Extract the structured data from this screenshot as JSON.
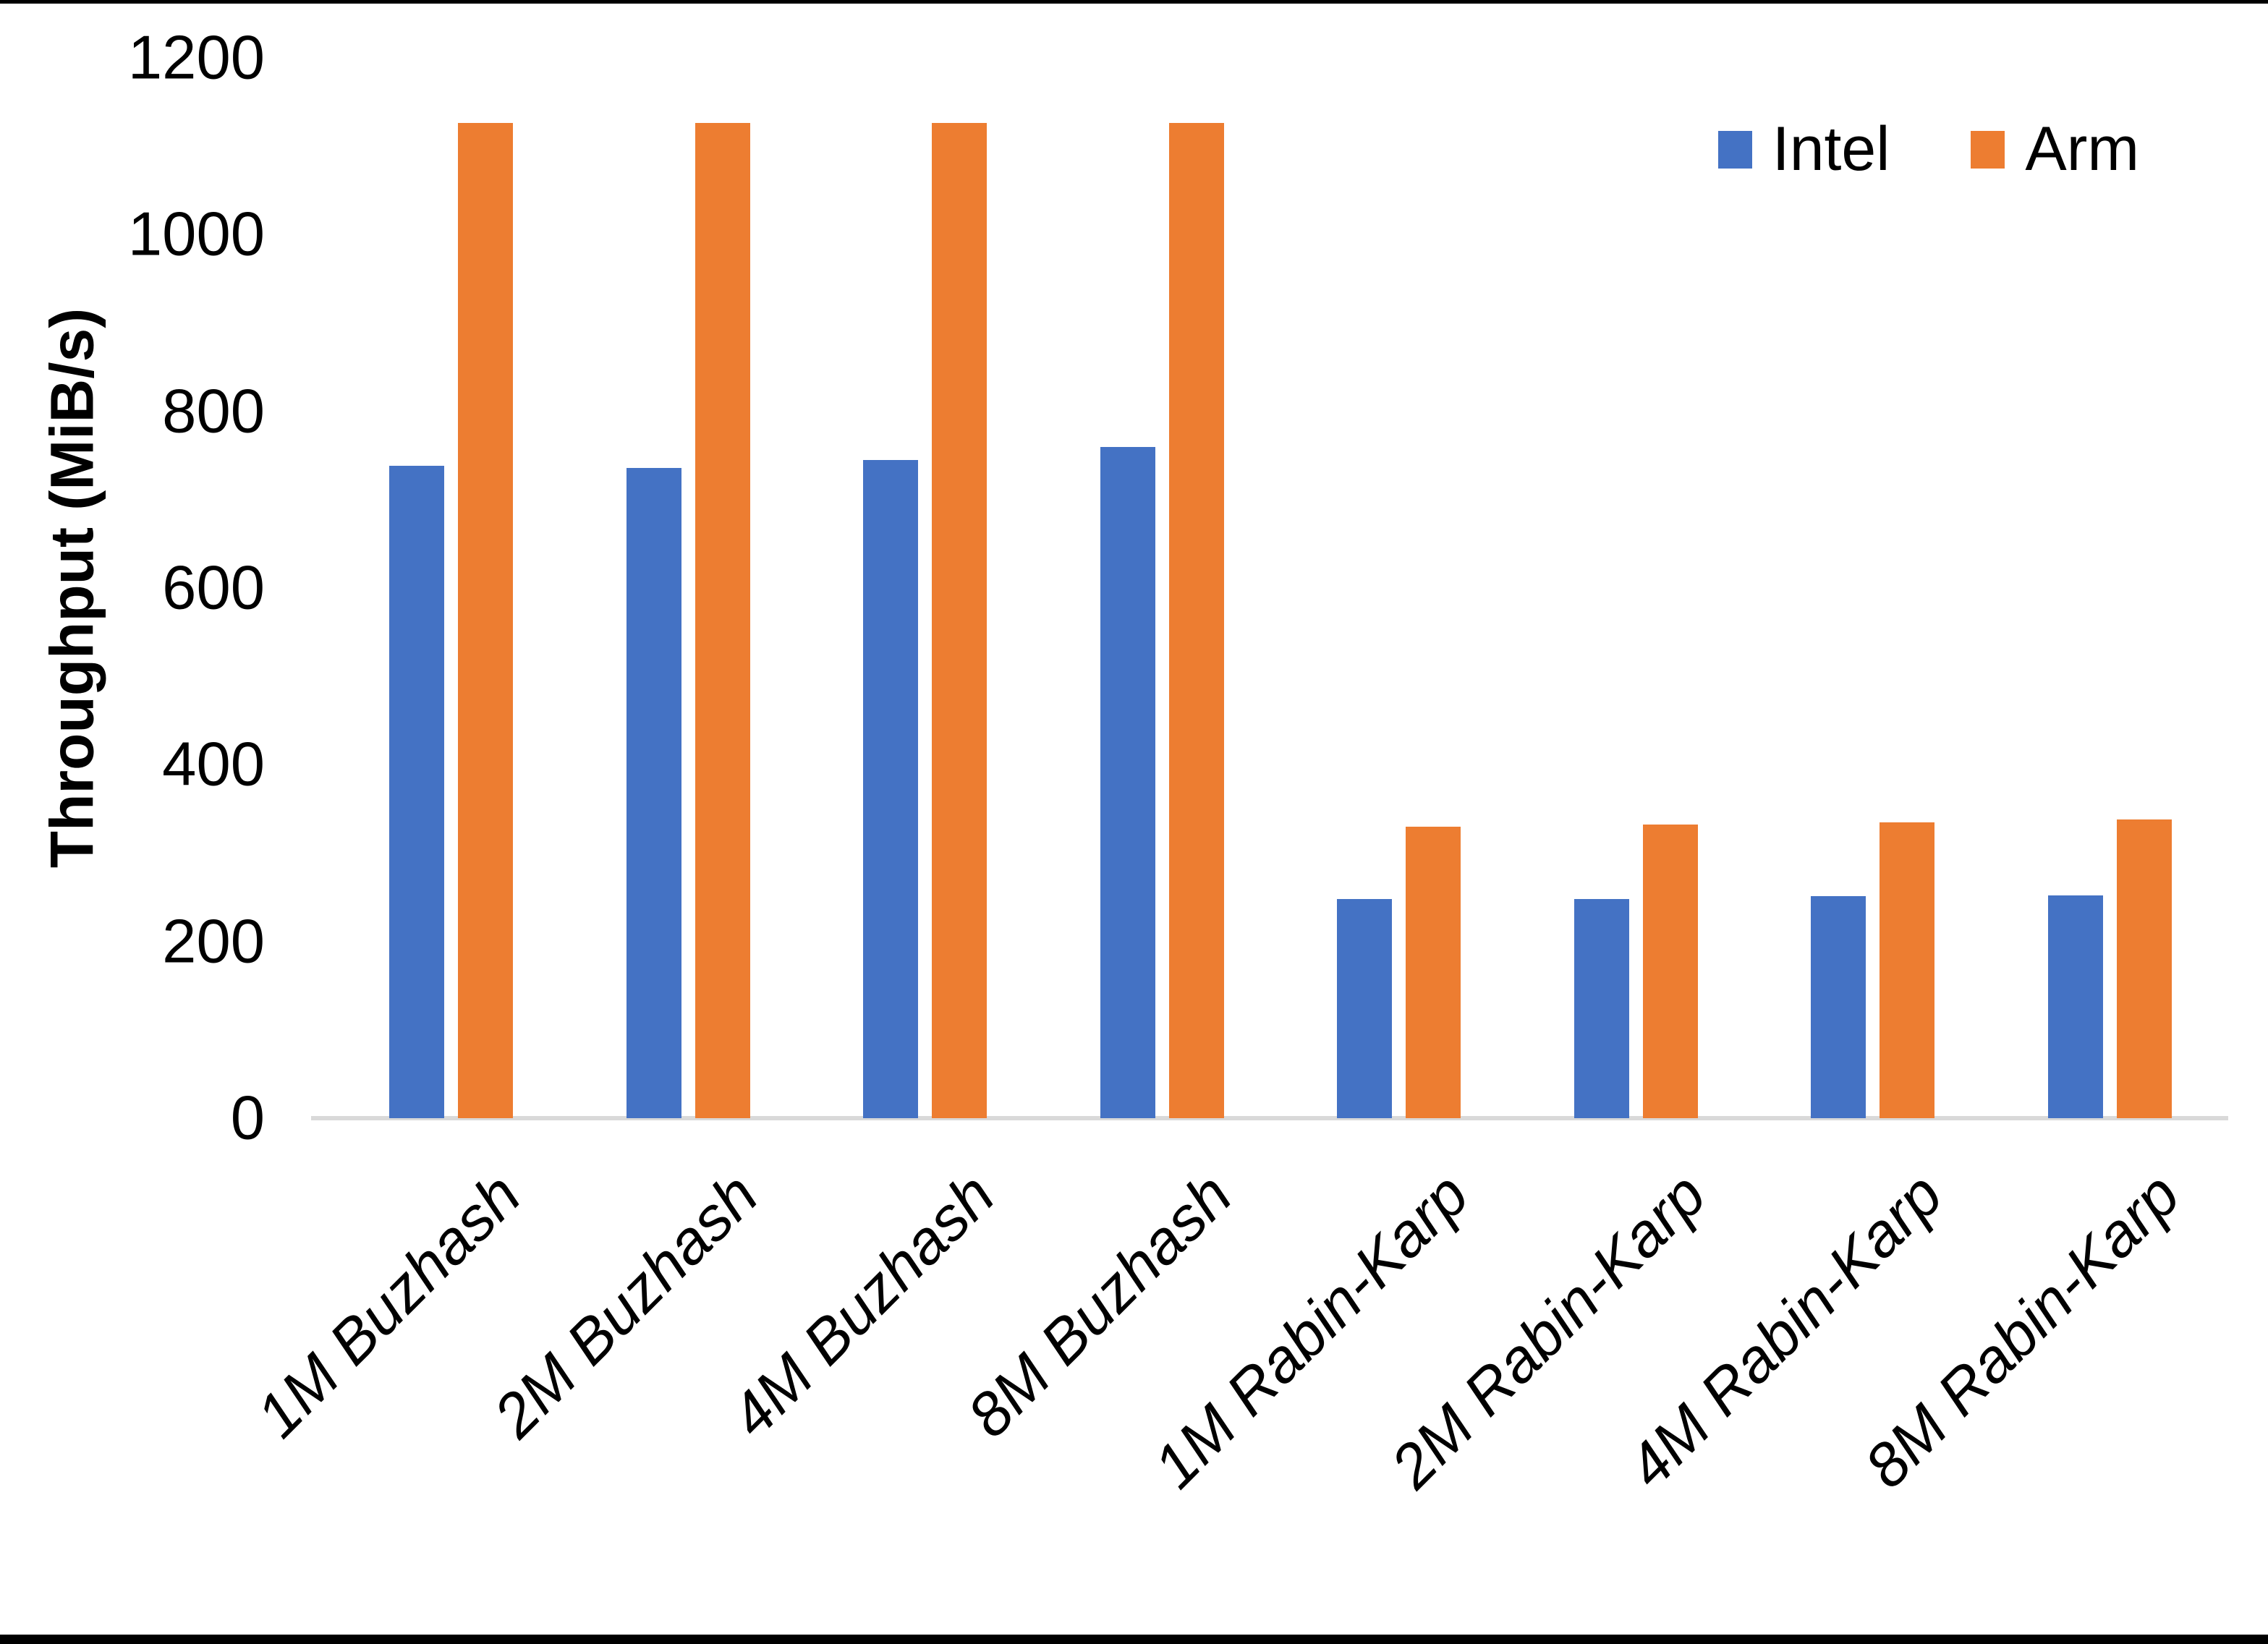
{
  "chart_data": {
    "type": "bar",
    "title": "",
    "categories": [
      "1M Buzhash",
      "2M Buzhash",
      "4M Buzhash",
      "8M Buzhash",
      "1M Rabin-Karp",
      "2M Rabin-Karp",
      "4M Rabin-Karp",
      "8M Rabin-Karp"
    ],
    "series": [
      {
        "name": "Intel",
        "color": "#4472C4",
        "values": [
          738,
          736,
          745,
          760,
          248,
          248,
          251,
          252
        ]
      },
      {
        "name": "Arm",
        "color": "#ED7D31",
        "values": [
          1126,
          1126,
          1126,
          1126,
          330,
          332,
          335,
          338
        ]
      }
    ],
    "xlabel": "",
    "ylabel": "Throughput (MiB/s)",
    "ylim": [
      0,
      1200
    ],
    "yticks": [
      1200,
      1000,
      800,
      600,
      400,
      200,
      0
    ],
    "grid": "off",
    "legend_position": "top-right",
    "axis_color": "#D9D9D9"
  }
}
